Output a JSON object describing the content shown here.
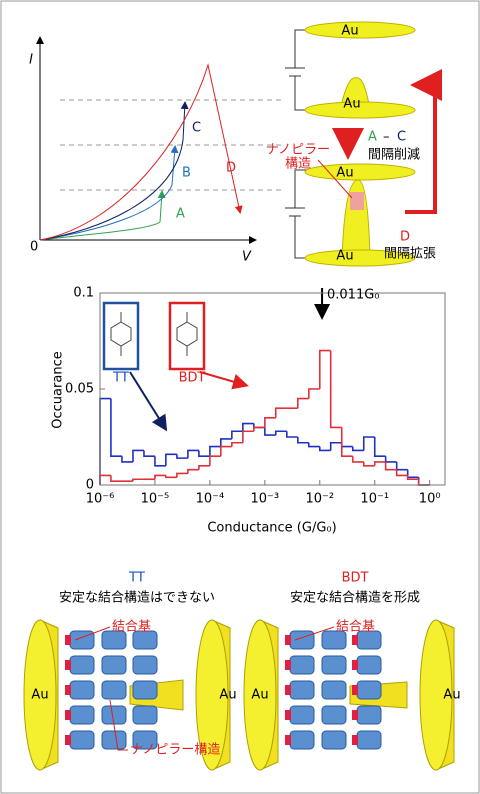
{
  "iv_panel": {
    "y_label": "I",
    "x_label": "V",
    "origin": "0",
    "curves": [
      "A",
      "B",
      "C",
      "D"
    ]
  },
  "junction_panel": {
    "electrode": "Au",
    "compress_from": "A",
    "compress_sep": "–",
    "compress_to": "C",
    "compress_note": "間隔削減",
    "nanopillar": [
      "ナノピラー",
      "構造"
    ],
    "expand_label": "D",
    "expand_note": "間隔拡張"
  },
  "chart_data": {
    "type": "histogram",
    "x_label": "Conductance (G/G₀)",
    "y_label": "Occuarance",
    "log_x": true,
    "xlim": [
      1e-06,
      1.9
    ],
    "ylim": [
      0,
      0.1
    ],
    "xticks": [
      {
        "value": 1e-06,
        "label": "10⁻⁶"
      },
      {
        "value": 1e-05,
        "label": "10⁻⁵"
      },
      {
        "value": 0.0001,
        "label": "10⁻⁴"
      },
      {
        "value": 0.001,
        "label": "10⁻³"
      },
      {
        "value": 0.01,
        "label": "10⁻²"
      },
      {
        "value": 0.1,
        "label": "10⁻¹"
      },
      {
        "value": 1,
        "label": "10⁰"
      }
    ],
    "yticks": [
      0,
      0.05,
      0.1
    ],
    "bins": [
      1e-06,
      1.58e-06,
      2.51e-06,
      3.98e-06,
      6.31e-06,
      1e-05,
      1.58e-05,
      2.51e-05,
      3.98e-05,
      6.31e-05,
      0.0001,
      0.000158,
      0.000251,
      0.000398,
      0.000631,
      0.001,
      0.00158,
      0.00251,
      0.00398,
      0.00631,
      0.01,
      0.0158,
      0.0251,
      0.0398,
      0.0631,
      0.1,
      0.158,
      0.251,
      0.398,
      0.631,
      1
    ],
    "series": [
      {
        "name": "TT",
        "color": "#2030c0",
        "values": [
          0.045,
          0.015,
          0.012,
          0.018,
          0.015,
          0.01,
          0.016,
          0.014,
          0.018,
          0.015,
          0.02,
          0.024,
          0.028,
          0.032,
          0.03,
          0.026,
          0.028,
          0.025,
          0.022,
          0.02,
          0.018,
          0.022,
          0.02,
          0.018,
          0.025,
          0.015,
          0.012,
          0.008,
          0.004,
          0
        ]
      },
      {
        "name": "BDT",
        "color": "#e0303a",
        "values": [
          0.005,
          0.002,
          0.002,
          0.003,
          0.003,
          0.005,
          0.004,
          0.006,
          0.008,
          0.01,
          0.015,
          0.02,
          0.022,
          0.028,
          0.03,
          0.035,
          0.04,
          0.04,
          0.045,
          0.05,
          0.07,
          0.03,
          0.015,
          0.012,
          0.01,
          0.012,
          0.008,
          0.005,
          0.003,
          0
        ]
      }
    ],
    "peak": {
      "value": 0.011,
      "label": "0.011G₀"
    }
  },
  "bottom": {
    "electrode": "Au",
    "group": "結合基",
    "pillar": "ナノピラー構造",
    "left": {
      "title": "TT",
      "note": "安定な結合構造はできない"
    },
    "right": {
      "title": "BDT",
      "note": "安定な結合構造を形成"
    }
  }
}
